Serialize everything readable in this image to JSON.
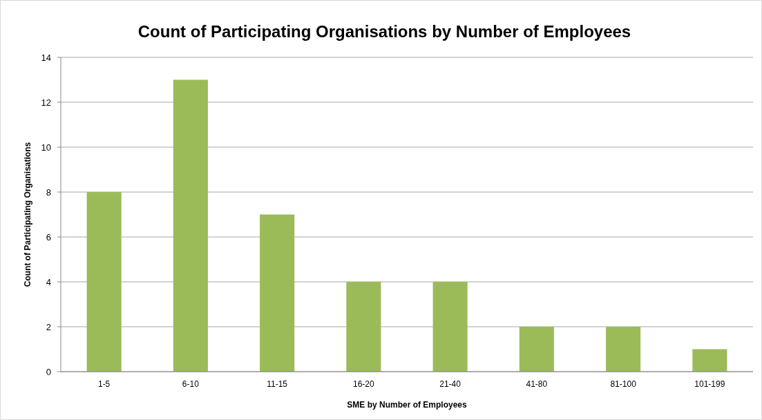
{
  "chart_data": {
    "type": "bar",
    "title": "Count of Participating Organisations by Number of Employees",
    "xlabel": "SME by Number of Employees",
    "ylabel": "Count of Participating Organisations",
    "categories": [
      "1-5",
      "6-10",
      "11-15",
      "16-20",
      "21-40",
      "41-80",
      "81-100",
      "101-199"
    ],
    "values": [
      8,
      13,
      7,
      4,
      4,
      2,
      2,
      1
    ],
    "color": "#9bbb59",
    "ylim": [
      0,
      14
    ],
    "yticks": [
      0,
      2,
      4,
      6,
      8,
      10,
      12,
      14
    ],
    "grid": "y"
  }
}
